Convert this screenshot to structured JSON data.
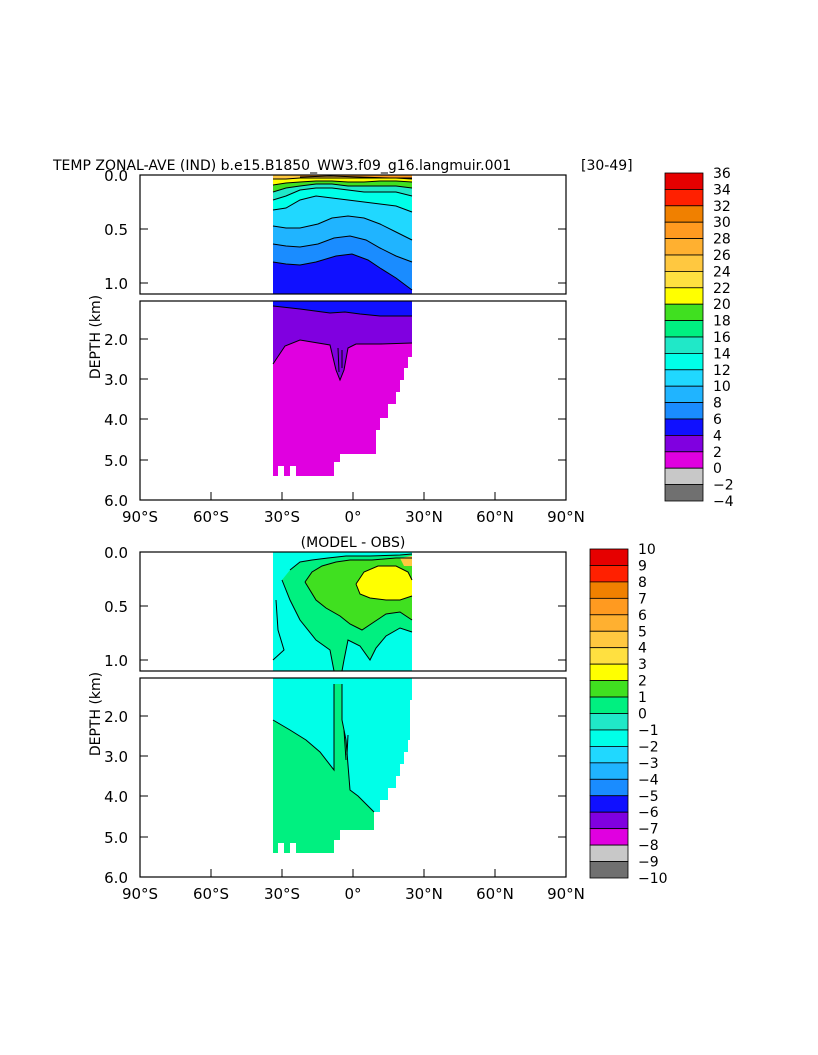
{
  "chart_data": [
    {
      "type": "heatmap",
      "title": "TEMP ZONAL-AVE (IND) b.e15.B1850_WW3.f09_g16.langmuir.001",
      "years_label": "[30-49]",
      "xlabel": "",
      "ylabel": "DEPTH (km)",
      "x_ticks": [
        "90°S",
        "60°S",
        "30°S",
        "0°",
        "30°N",
        "60°N",
        "90°N"
      ],
      "y_ticks_upper": [
        "0.0",
        "0.5",
        "1.0"
      ],
      "y_ticks_lower": [
        "2.0",
        "3.0",
        "4.0",
        "5.0",
        "6.0"
      ],
      "xlim": [
        -90,
        90
      ],
      "ylim_km": [
        6.0,
        0.0
      ],
      "upper_panel_ylim_km": [
        1.15,
        0.0
      ],
      "lower_panel_ylim_km": [
        6.0,
        1.15
      ],
      "data_extent_lat": [
        -34,
        25
      ],
      "colorbar_labels": [
        "36",
        "34",
        "32",
        "30",
        "28",
        "26",
        "24",
        "22",
        "20",
        "18",
        "16",
        "14",
        "12",
        "10",
        "8",
        "6",
        "4",
        "2",
        "0",
        "−2",
        "−4"
      ],
      "colorbar_colors": [
        "#c80000",
        "#e60000",
        "#ff2000",
        "#f08000",
        "#ff9a20",
        "#ffb030",
        "#ffc840",
        "#ffe040",
        "#ffff00",
        "#40e020",
        "#00f080",
        "#20e8c8",
        "#00ffe8",
        "#20d8ff",
        "#20b4ff",
        "#1a8cff",
        "#1010ff",
        "#8000e0",
        "#e000e0",
        "#c8c8c8",
        "#707070"
      ],
      "fields": [
        {
          "x": [
            -34,
            -30,
            -25,
            -20,
            -15,
            -10,
            -5,
            0,
            5,
            10,
            15,
            20,
            25
          ],
          "isotherms_depth_km": {
            "26": [
              0.02,
              0.02,
              0.02,
              0.02,
              0.02,
              0.02,
              0.03,
              0.03,
              0.03,
              0.04,
              0.05,
              0.04,
              0.04
            ],
            "22": [
              0.0,
              0.02,
              0.05,
              0.06,
              0.06,
              0.06,
              0.07,
              0.08,
              0.09,
              0.09,
              0.1,
              0.1,
              0.08
            ],
            "18": [
              0.02,
              0.06,
              0.12,
              0.14,
              0.12,
              0.1,
              0.12,
              0.14,
              0.16,
              0.17,
              0.18,
              0.19,
              0.18
            ],
            "14": [
              0.15,
              0.2,
              0.28,
              0.26,
              0.22,
              0.2,
              0.22,
              0.25,
              0.27,
              0.28,
              0.3,
              0.31,
              0.32
            ],
            "10": [
              0.45,
              0.45,
              0.5,
              0.48,
              0.42,
              0.38,
              0.38,
              0.42,
              0.45,
              0.47,
              0.5,
              0.52,
              0.55
            ],
            "8": [
              0.65,
              0.66,
              0.7,
              0.68,
              0.62,
              0.58,
              0.6,
              0.63,
              0.66,
              0.7,
              0.72,
              0.75,
              0.78
            ],
            "6": [
              0.85,
              0.88,
              0.92,
              0.9,
              0.86,
              0.82,
              0.84,
              0.88,
              0.92,
              0.96,
              1.0,
              1.05,
              1.1
            ],
            "4": [
              1.15,
              1.18,
              1.2,
              1.22,
              1.24,
              1.25,
              1.28,
              1.3,
              1.32,
              1.34,
              1.36,
              1.38,
              1.4
            ],
            "2": [
              2.7,
              2.5,
              2.2,
              2.15,
              2.1,
              2.1,
              2.12,
              2.1,
              2.1,
              2.1,
              2.1,
              2.1,
              2.1
            ]
          },
          "max_depth_km": [
            5.4,
            5.35,
            5.35,
            5.35,
            5.35,
            5.2,
            5.2,
            5.0,
            4.8,
            4.5,
            4.2,
            3.7,
            2.5
          ]
        }
      ]
    },
    {
      "type": "heatmap",
      "title": "(MODEL - OBS)",
      "xlabel": "",
      "ylabel": "DEPTH (km)",
      "x_ticks": [
        "90°S",
        "60°S",
        "30°S",
        "0°",
        "30°N",
        "60°N",
        "90°N"
      ],
      "y_ticks_upper": [
        "0.0",
        "0.5",
        "1.0"
      ],
      "y_ticks_lower": [
        "2.0",
        "3.0",
        "4.0",
        "5.0",
        "6.0"
      ],
      "xlim": [
        -90,
        90
      ],
      "ylim_km": [
        6.0,
        0.0
      ],
      "data_extent_lat": [
        -34,
        25
      ],
      "colorbar_labels": [
        "10",
        "9",
        "8",
        "7",
        "6",
        "5",
        "4",
        "3",
        "2",
        "1",
        "0",
        "−1",
        "−2",
        "−3",
        "−4",
        "−5",
        "−6",
        "−7",
        "−8",
        "−9",
        "−10"
      ],
      "colorbar_colors": [
        "#c80000",
        "#e60000",
        "#ff2000",
        "#f08000",
        "#ff9a20",
        "#ffb030",
        "#ffc840",
        "#ffe040",
        "#ffff00",
        "#40e020",
        "#00f080",
        "#20e8c8",
        "#00ffe8",
        "#20d8ff",
        "#20b4ff",
        "#1a8cff",
        "#1010ff",
        "#8000e0",
        "#e000e0",
        "#c8c8c8",
        "#707070"
      ],
      "regions": [
        {
          "range": "0 to 1 (bias)",
          "lat": [
            -30,
            25
          ],
          "depth_km": [
            0.03,
            0.75
          ]
        },
        {
          "range": "2 to 3 (bias)",
          "lat": [
            2,
            20
          ],
          "depth_km": [
            0.1,
            0.35
          ]
        },
        {
          "range": "0 to 1 (bias)",
          "lat": [
            -34,
            -4
          ],
          "depth_km": [
            1.8,
            5.4
          ]
        },
        {
          "range": "-1 to 0 (bias)",
          "lat": [
            -4,
            25
          ],
          "depth_km": [
            1.15,
            4.5
          ]
        }
      ]
    }
  ]
}
